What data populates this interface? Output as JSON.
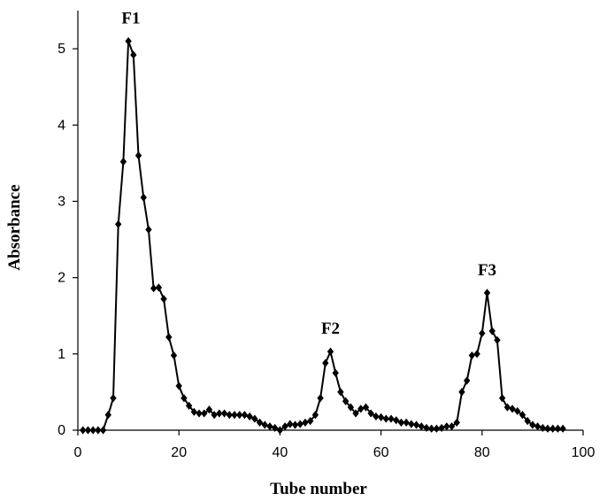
{
  "chart_data": {
    "type": "line",
    "xlabel": "Tube number",
    "ylabel": "Absorbance",
    "xlim": [
      0,
      100
    ],
    "ylim": [
      0,
      5.5
    ],
    "xticks": [
      0,
      20,
      40,
      60,
      80,
      100
    ],
    "yticks": [
      0,
      1,
      2,
      3,
      4,
      5
    ],
    "grid": false,
    "marker": "diamond",
    "color": "#000000",
    "annotations": [
      {
        "text": "F1",
        "x": 10.5,
        "y": 5.1
      },
      {
        "text": "F2",
        "x": 50,
        "y": 1.03
      },
      {
        "text": "F3",
        "x": 81,
        "y": 1.8
      }
    ],
    "series": [
      {
        "x": [
          1,
          2,
          3,
          4,
          5,
          6,
          7,
          8,
          9,
          10,
          11,
          12,
          13,
          14,
          15,
          16,
          17,
          18,
          19,
          20,
          21,
          22,
          23,
          24,
          25,
          26,
          27,
          28,
          29,
          30,
          31,
          32,
          33,
          34,
          35,
          36,
          37,
          38,
          39,
          40,
          41,
          42,
          43,
          44,
          45,
          46,
          47,
          48,
          49,
          50,
          51,
          52,
          53,
          54,
          55,
          56,
          57,
          58,
          59,
          60,
          61,
          62,
          63,
          64,
          65,
          66,
          67,
          68,
          69,
          70,
          71,
          72,
          73,
          74,
          75,
          76,
          77,
          78,
          79,
          80,
          81,
          82,
          83,
          84,
          85,
          86,
          87,
          88,
          89,
          90,
          91,
          92,
          93,
          94,
          95,
          96
        ],
        "y": [
          0.0,
          0.0,
          0.0,
          0.0,
          0.0,
          0.2,
          0.42,
          2.7,
          3.52,
          5.1,
          4.92,
          3.6,
          3.05,
          2.63,
          1.86,
          1.87,
          1.72,
          1.22,
          0.98,
          0.58,
          0.42,
          0.32,
          0.24,
          0.22,
          0.22,
          0.27,
          0.2,
          0.22,
          0.22,
          0.2,
          0.2,
          0.2,
          0.2,
          0.18,
          0.15,
          0.1,
          0.07,
          0.05,
          0.03,
          0.0,
          0.05,
          0.08,
          0.07,
          0.08,
          0.1,
          0.12,
          0.2,
          0.42,
          0.88,
          1.03,
          0.75,
          0.5,
          0.38,
          0.3,
          0.22,
          0.28,
          0.3,
          0.22,
          0.18,
          0.17,
          0.15,
          0.15,
          0.13,
          0.1,
          0.1,
          0.08,
          0.07,
          0.05,
          0.03,
          0.02,
          0.02,
          0.03,
          0.05,
          0.05,
          0.1,
          0.5,
          0.65,
          0.98,
          1.0,
          1.27,
          1.8,
          1.3,
          1.18,
          0.42,
          0.3,
          0.28,
          0.25,
          0.2,
          0.12,
          0.07,
          0.05,
          0.03,
          0.02,
          0.02,
          0.02,
          0.02
        ]
      }
    ]
  }
}
